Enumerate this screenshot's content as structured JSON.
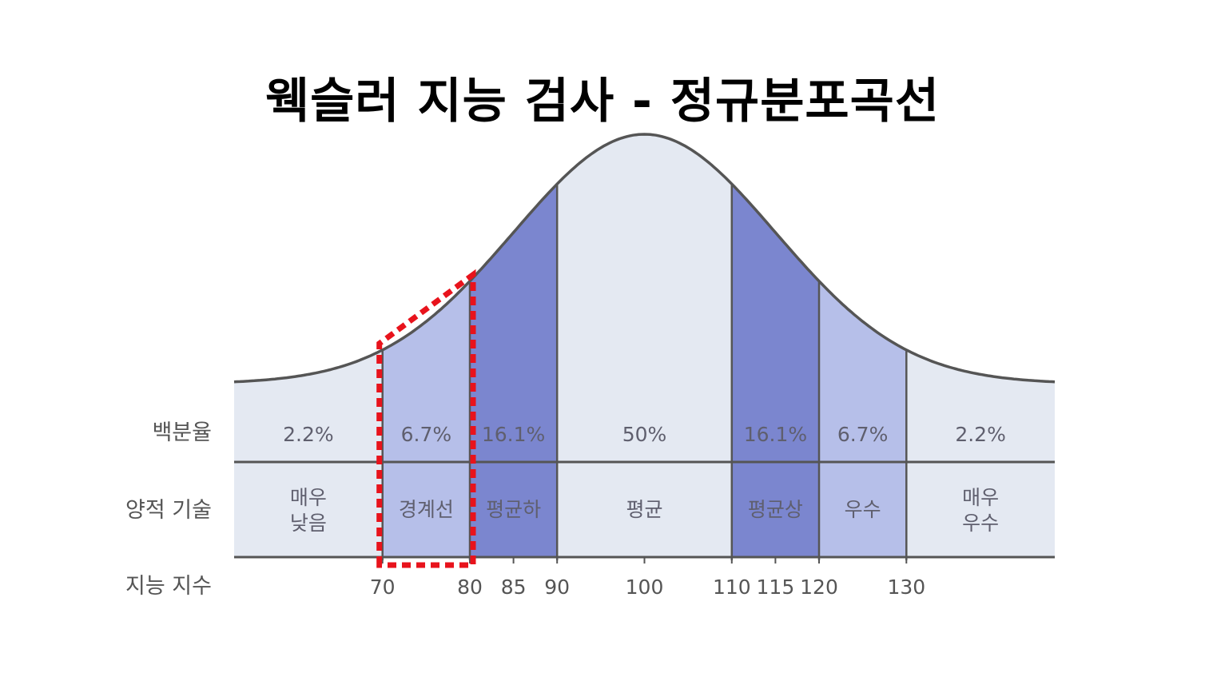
{
  "title": "웩슬러 지능 검사 - 정규분포곡선",
  "row_labels": {
    "percentage": "백분율",
    "description": "양적 기술",
    "iq": "지능 지수"
  },
  "colors": {
    "light": "#e4e9f2",
    "medium": "#b6bfe9",
    "dark": "#7b86cf",
    "curve": "#555555",
    "highlight": "#e8131c"
  },
  "chart_data": {
    "type": "area",
    "title": "웩슬러 지능 검사 - 정규분포곡선",
    "distribution": {
      "mean": 100,
      "sd": 15
    },
    "x_range": [
      53,
      147
    ],
    "segments": [
      {
        "from": 53,
        "to": 70,
        "percent": "2.2%",
        "label": [
          "매우",
          "낮음"
        ],
        "shade": "light"
      },
      {
        "from": 70,
        "to": 80,
        "percent": "6.7%",
        "label": [
          "경계선"
        ],
        "shade": "medium"
      },
      {
        "from": 80,
        "to": 90,
        "percent": "16.1%",
        "label": [
          "평균하"
        ],
        "shade": "dark"
      },
      {
        "from": 90,
        "to": 110,
        "percent": "50%",
        "label": [
          "평균"
        ],
        "shade": "light"
      },
      {
        "from": 110,
        "to": 120,
        "percent": "16.1%",
        "label": [
          "평균상"
        ],
        "shade": "dark"
      },
      {
        "from": 120,
        "to": 130,
        "percent": "6.7%",
        "label": [
          "우수"
        ],
        "shade": "medium"
      },
      {
        "from": 130,
        "to": 147,
        "percent": "2.2%",
        "label": [
          "매우",
          "우수"
        ],
        "shade": "light"
      }
    ],
    "ticks": [
      70,
      80,
      85,
      90,
      100,
      110,
      115,
      120,
      130
    ],
    "highlight_range": [
      70,
      80
    ]
  }
}
